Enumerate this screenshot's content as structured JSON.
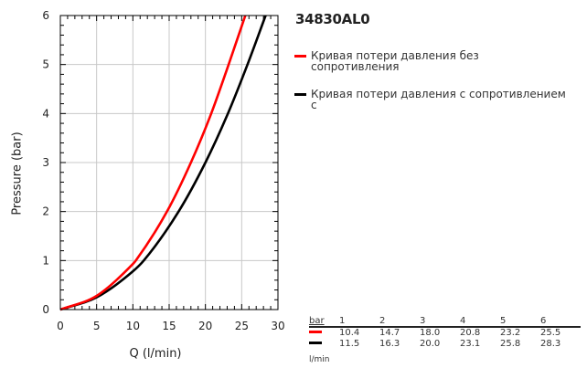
{
  "title": "34830AL0",
  "chart_data": {
    "type": "line",
    "xlabel": "Q (l/min)",
    "ylabel": "Pressure (bar)",
    "xlim": [
      0,
      30
    ],
    "ylim": [
      0,
      6
    ],
    "xticks": [
      0,
      5,
      10,
      15,
      20,
      25,
      30
    ],
    "yticks": [
      0,
      1,
      2,
      3,
      4,
      5,
      6
    ],
    "grid": true,
    "legend_position": "right",
    "series": [
      {
        "name": "Кривая потери давления без сопротивления",
        "color": "#ff0000",
        "x": [
          0,
          5,
          10,
          10.4,
          14.7,
          18.0,
          20.8,
          23.2,
          25.5
        ],
        "y": [
          0,
          0.28,
          0.93,
          1,
          2,
          3,
          4,
          5,
          6
        ]
      },
      {
        "name": "Кривая потери давления с сопротивлением с",
        "color": "#000000",
        "x": [
          0,
          5,
          10,
          11.5,
          16.3,
          20.0,
          23.1,
          25.8,
          28.3
        ],
        "y": [
          0,
          0.25,
          0.78,
          1,
          2,
          3,
          4,
          5,
          6
        ]
      }
    ]
  },
  "table": {
    "header_label": "bar",
    "columns": [
      "1",
      "2",
      "3",
      "4",
      "5",
      "6"
    ],
    "rows": [
      {
        "color": "#ff0000",
        "values": [
          "10.4",
          "14.7",
          "18.0",
          "20.8",
          "23.2",
          "25.5"
        ]
      },
      {
        "color": "#000000",
        "values": [
          "11.5",
          "16.3",
          "20.0",
          "23.1",
          "25.8",
          "28.3"
        ]
      }
    ],
    "unit_label": "l/min"
  }
}
